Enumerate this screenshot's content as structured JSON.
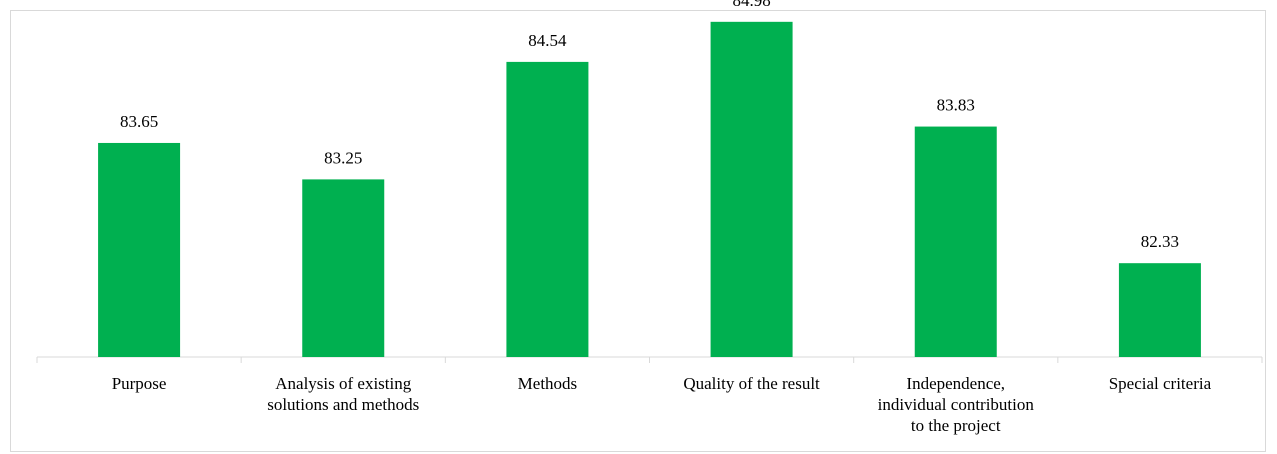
{
  "chart_data": {
    "type": "bar",
    "title": "",
    "xlabel": "",
    "ylabel": "",
    "categories": [
      [
        "Purpose"
      ],
      [
        "Analysis of existing",
        "solutions and methods"
      ],
      [
        "Methods"
      ],
      [
        "Quality of the result"
      ],
      [
        "Independence,",
        "individual contribution",
        "to the project"
      ],
      [
        "Special criteria"
      ]
    ],
    "values": [
      83.65,
      83.25,
      84.54,
      84.98,
      83.83,
      82.33
    ],
    "value_labels": [
      "83.65",
      "83.25",
      "84.54",
      "84.98",
      "83.83",
      "82.33"
    ],
    "ylim": [
      81.3,
      85.0
    ],
    "bar_color": "#00b050",
    "axis_color": "#d9d9d9",
    "grid": false,
    "legend": "none"
  }
}
